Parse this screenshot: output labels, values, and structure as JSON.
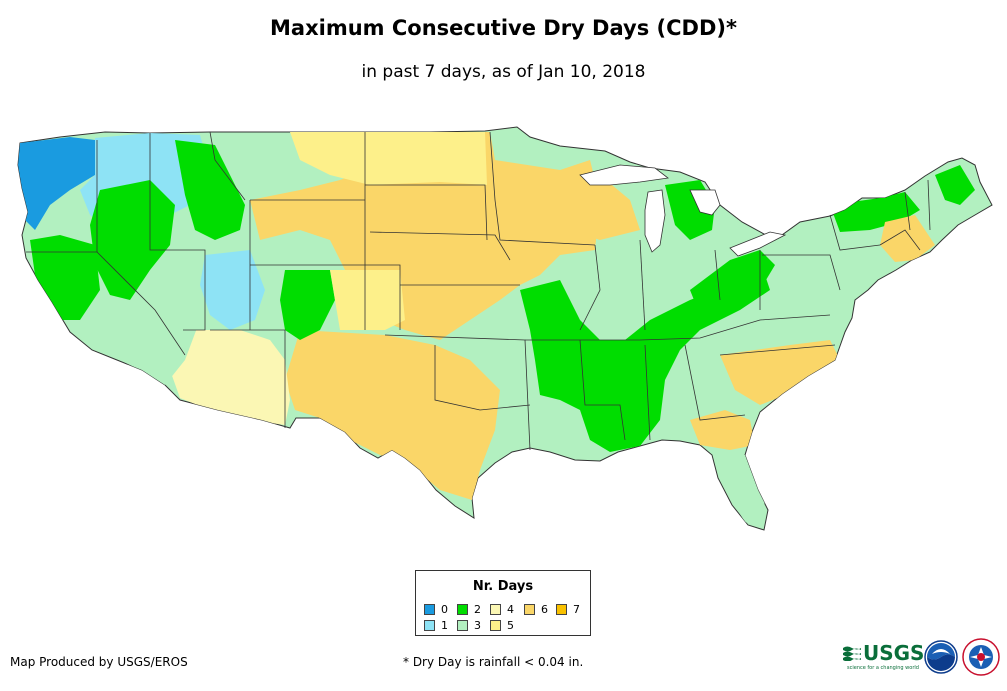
{
  "title": "Maximum Consecutive Dry Days (CDD)*",
  "subtitle": "in past 7 days, as of Jan 10, 2018",
  "legend": {
    "title": "Nr. Days",
    "items": [
      {
        "label": "0",
        "color": "#1a9be0"
      },
      {
        "label": "1",
        "color": "#8ee3f5"
      },
      {
        "label": "2",
        "color": "#00dd00"
      },
      {
        "label": "3",
        "color": "#b2f0c0"
      },
      {
        "label": "4",
        "color": "#fbf7b4"
      },
      {
        "label": "5",
        "color": "#fdf08a"
      },
      {
        "label": "6",
        "color": "#fad668"
      },
      {
        "label": "7",
        "color": "#f9c100"
      }
    ]
  },
  "footer": {
    "credit": "Map Produced by USGS/EROS",
    "note": "* Dry Day is rainfall < 0.04 in."
  },
  "logos": {
    "usgs": "USGS",
    "usgs_tagline": "science for a changing world",
    "noaa": "noaa-logo",
    "nws": "nws-logo"
  }
}
